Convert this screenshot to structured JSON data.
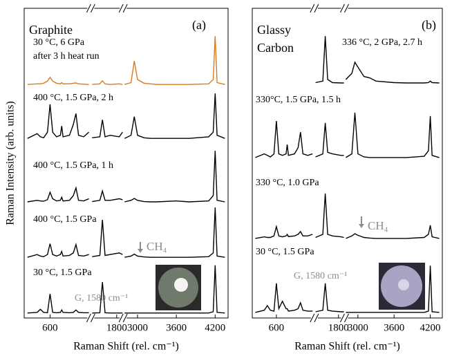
{
  "chart_data": [
    {
      "type": "line",
      "ylabel": "Raman Intensity (arb. units)",
      "xlabel": "Raman Shift (rel. cm⁻¹)",
      "xsegments": [
        [
          200,
          1230
        ],
        [
          1400,
          1900
        ],
        [
          2778,
          4400
        ]
      ],
      "ylim": [
        0,
        100
      ],
      "xticks": [
        600,
        1800,
        3000,
        3600,
        4200
      ],
      "x": [
        250,
        400,
        450,
        500,
        560,
        600,
        640,
        700,
        760,
        780,
        800,
        900,
        960,
        1000,
        1040,
        1120,
        1200,
        1300,
        1420,
        1540,
        1580,
        1620,
        1700,
        1840,
        1890,
        2300,
        2800,
        2900,
        2950,
        3000,
        3100,
        3200,
        3300,
        3600,
        3800,
        4100,
        4170,
        4200,
        4230,
        4350
      ],
      "series": [
        {
          "color": "#d97a1c",
          "values": [
            75.4,
            75.6,
            75.6,
            75.8,
            76.5,
            77.7,
            76.5,
            75.8,
            75.6,
            76,
            75.6,
            75.6,
            75.8,
            75.9,
            75.6,
            75.5,
            75.4,
            null,
            75.4,
            75.6,
            76.6,
            75.6,
            75.4,
            75.6,
            75.4,
            null,
            75.4,
            76,
            83,
            77,
            75.8,
            75.6,
            75.4,
            75.4,
            75.4,
            75.6,
            77,
            91,
            76,
            75.4
          ]
        },
        {
          "color": "#000000",
          "values": [
            58,
            59.5,
            58.5,
            58.2,
            60,
            69,
            60,
            58.5,
            59,
            62,
            58.5,
            59,
            62.5,
            66,
            59,
            58.5,
            60,
            null,
            58.2,
            58.5,
            64,
            58.5,
            59,
            58.5,
            60,
            null,
            58,
            59,
            65,
            59,
            58.2,
            58,
            58,
            58,
            58,
            58.5,
            60,
            72.5,
            59,
            58
          ]
        },
        {
          "color": "#000000",
          "values": [
            37.5,
            38,
            37.8,
            37.7,
            38.2,
            40.6,
            38.5,
            37.8,
            38,
            39,
            37.8,
            38,
            39.5,
            42,
            38,
            37.8,
            38.5,
            null,
            37.6,
            38,
            41,
            38,
            38,
            38.5,
            38.2,
            null,
            37.5,
            38,
            38.6,
            38,
            37.6,
            37.5,
            37.5,
            37.8,
            37.5,
            37.8,
            39.5,
            54,
            38,
            37.5
          ]
        },
        {
          "color": "#000000",
          "values": [
            19.6,
            20.5,
            20,
            19.8,
            20.5,
            24,
            20.5,
            20,
            20.5,
            21.5,
            20,
            20.2,
            21,
            23.7,
            20.2,
            20,
            20.5,
            null,
            19.8,
            20.2,
            31.7,
            20.2,
            20.5,
            21,
            20.5,
            null,
            19.6,
            20,
            20.6,
            20,
            19.7,
            19.6,
            19.6,
            19.6,
            19.6,
            19.8,
            21,
            35.7,
            20,
            19.6
          ]
        },
        {
          "color": "#000000",
          "values": [
            1.6,
            1.8,
            2.8,
            1.8,
            1.7,
            7.8,
            1.8,
            1.7,
            1.8,
            2.6,
            1.8,
            1.7,
            1.8,
            2.6,
            1.8,
            1.7,
            1.7,
            null,
            1.6,
            1.7,
            11.6,
            1.7,
            1.6,
            1.6,
            1.6,
            null,
            1.6,
            1.6,
            1.6,
            1.6,
            1.6,
            1.6,
            1.6,
            1.6,
            1.6,
            1.6,
            2,
            17,
            1.8,
            1.6
          ]
        }
      ],
      "annotations": [
        {
          "text": "Graphite",
          "color": "#000000"
        },
        {
          "text": "(a)",
          "color": "#000000"
        },
        {
          "text": "30 °C, 6 GPa",
          "color": "#000000"
        },
        {
          "text": "after 3 h heat run",
          "color": "#000000"
        },
        {
          "text": "400 °C, 1.5 GPa, 2 h",
          "color": "#000000"
        },
        {
          "text": "400 °C, 1.5 GPa, 1 h",
          "color": "#000000"
        },
        {
          "text": "400 °C, 1.5 GPa",
          "color": "#000000"
        },
        {
          "text": "30 °C, 1.5 GPa",
          "color": "#000000"
        },
        {
          "text": "G, 1580 cm⁻¹",
          "color": "#8c8c8c"
        },
        {
          "text": "CH₄",
          "color": "#8c8c8c"
        }
      ]
    },
    {
      "type": "line",
      "xlabel": "Raman Shift (rel. cm⁻¹)",
      "xsegments": [
        [
          200,
          1230
        ],
        [
          1400,
          1900
        ],
        [
          2778,
          4400
        ]
      ],
      "ylim": [
        0,
        100
      ],
      "xticks": [
        600,
        1800,
        3000,
        3600,
        4200
      ],
      "x": [
        250,
        400,
        450,
        500,
        560,
        600,
        640,
        700,
        760,
        780,
        800,
        900,
        960,
        1000,
        1040,
        1120,
        1200,
        1300,
        1420,
        1540,
        1580,
        1620,
        1700,
        1840,
        1890,
        2300,
        2800,
        2900,
        2950,
        3000,
        3100,
        3200,
        3300,
        3600,
        3800,
        4100,
        4170,
        4200,
        4230,
        4350
      ],
      "series": [
        {
          "color": "#000000",
          "values": [
            null,
            null,
            null,
            null,
            null,
            null,
            null,
            null,
            null,
            null,
            null,
            null,
            null,
            null,
            null,
            null,
            null,
            null,
            76,
            76.5,
            91,
            77,
            76,
            75.9,
            75.9,
            null,
            77,
            79,
            82.6,
            81,
            78,
            77.5,
            76.5,
            76,
            75.9,
            75.9,
            76,
            76.5,
            76,
            75.9
          ]
        },
        {
          "color": "#000000",
          "values": [
            51.8,
            53,
            52.5,
            52,
            53,
            63.6,
            53,
            52.5,
            53,
            56,
            52.5,
            53,
            55,
            60,
            53,
            52.5,
            53,
            null,
            52,
            53,
            63,
            53.5,
            53,
            52.5,
            52.5,
            null,
            51.8,
            53,
            66.3,
            53,
            52,
            51.8,
            51.8,
            51.8,
            51.8,
            52.2,
            54,
            65.2,
            52.5,
            51.8
          ]
        },
        {
          "color": "#000000",
          "values": [
            25.7,
            26.2,
            26,
            26,
            26.5,
            29.5,
            26.5,
            26.2,
            26.5,
            27,
            26.3,
            26.5,
            27,
            27.9,
            26.5,
            26.5,
            27,
            null,
            26,
            27,
            40.2,
            27,
            26.5,
            26.2,
            26,
            null,
            25.7,
            26.5,
            27.2,
            26.7,
            26,
            25.8,
            25.7,
            25.7,
            25.7,
            26,
            27,
            29.9,
            26.2,
            25.7
          ]
        },
        {
          "color": "#000000",
          "values": [
            1.8,
            2.5,
            4,
            2.5,
            2.2,
            11.2,
            3,
            5.4,
            3,
            3,
            2.2,
            2.5,
            3,
            4.9,
            2.5,
            2.2,
            2.2,
            null,
            2,
            2.5,
            11.2,
            2.5,
            2.2,
            2,
            2,
            null,
            1.8,
            1.8,
            1.8,
            1.8,
            1.8,
            1.8,
            1.8,
            1.8,
            1.8,
            1.8,
            2.2,
            16.9,
            2,
            1.8
          ]
        }
      ],
      "annotations": [
        {
          "text": "Glassy",
          "color": "#000000"
        },
        {
          "text": "Carbon",
          "color": "#000000"
        },
        {
          "text": "(b)",
          "color": "#000000"
        },
        {
          "text": "336 °C, 2 GPa, 2.7 h",
          "color": "#000000"
        },
        {
          "text": "330°C, 1.5 GPa, 1.5 h",
          "color": "#000000"
        },
        {
          "text": "330 °C, 1.0 GPa",
          "color": "#000000"
        },
        {
          "text": "30 °C, 1.5 GPa",
          "color": "#000000"
        },
        {
          "text": "G, 1580 cm⁻¹",
          "color": "#8c8c8c"
        },
        {
          "text": "CH₄",
          "color": "#8c8c8c"
        }
      ]
    }
  ]
}
